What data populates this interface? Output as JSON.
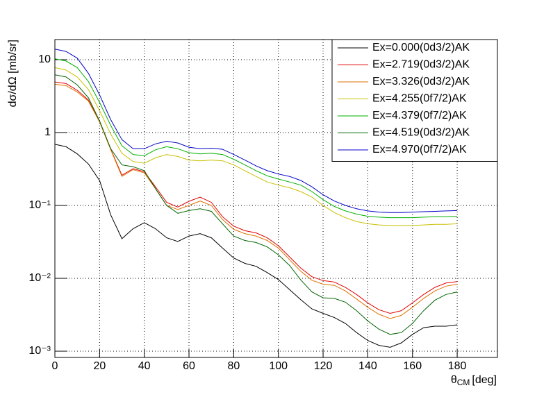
{
  "chart_data": {
    "type": "line",
    "x_label": {
      "symbol": "θ",
      "subscript": "CM",
      "unit": "[deg]"
    },
    "y_label": "dσ/dΩ [mb/sr]",
    "log_y": true,
    "grid": true,
    "legend": "top-right",
    "xlim": [
      0,
      198
    ],
    "xticks": [
      0,
      20,
      40,
      60,
      80,
      100,
      120,
      140,
      160,
      180
    ],
    "ylim": [
      0.00082,
      18.9
    ],
    "yticks": [
      {
        "value": 0.001,
        "label": "10⁻³"
      },
      {
        "value": 0.01,
        "label": "10⁻²"
      },
      {
        "value": 0.1,
        "label": "10⁻¹"
      },
      1,
      10
    ],
    "x": [
      0,
      5,
      10,
      15,
      20,
      25,
      30,
      35,
      40,
      45,
      50,
      55,
      60,
      65,
      70,
      75,
      80,
      85,
      90,
      95,
      100,
      105,
      110,
      115,
      120,
      125,
      130,
      135,
      140,
      145,
      150,
      155,
      160,
      165,
      170,
      175,
      180
    ],
    "series": [
      {
        "name": "Ex=0.000(0d3/2)AK",
        "color": "#000000",
        "values": [
          0.69,
          0.64,
          0.51,
          0.37,
          0.22,
          0.074,
          0.035,
          0.048,
          0.058,
          0.048,
          0.036,
          0.032,
          0.038,
          0.041,
          0.036,
          0.026,
          0.019,
          0.016,
          0.0146,
          0.012,
          0.0096,
          0.007,
          0.0051,
          0.0038,
          0.0033,
          0.0029,
          0.0024,
          0.0018,
          0.0014,
          0.0012,
          0.00113,
          0.0013,
          0.0017,
          0.0021,
          0.0022,
          0.0022,
          0.0023
        ]
      },
      {
        "name": "Ex=2.719(0d3/2)AK",
        "color": "#e00000",
        "values": [
          4.95,
          4.7,
          3.8,
          2.8,
          1.42,
          0.59,
          0.26,
          0.32,
          0.29,
          0.18,
          0.11,
          0.095,
          0.114,
          0.13,
          0.11,
          0.07,
          0.052,
          0.045,
          0.042,
          0.036,
          0.028,
          0.0197,
          0.0138,
          0.0105,
          0.0093,
          0.0089,
          0.0075,
          0.006,
          0.0046,
          0.0037,
          0.0033,
          0.0036,
          0.0046,
          0.006,
          0.0075,
          0.0086,
          0.009
        ]
      },
      {
        "name": "Ex=3.326(0d3/2)AK",
        "color": "#e07000",
        "values": [
          4.6,
          4.4,
          3.6,
          2.7,
          1.4,
          0.58,
          0.25,
          0.31,
          0.28,
          0.17,
          0.1,
          0.088,
          0.1,
          0.115,
          0.1,
          0.064,
          0.047,
          0.041,
          0.038,
          0.033,
          0.026,
          0.018,
          0.0125,
          0.0094,
          0.0083,
          0.008,
          0.0067,
          0.0052,
          0.004,
          0.0032,
          0.0028,
          0.0031,
          0.004,
          0.0053,
          0.0067,
          0.0078,
          0.0083
        ]
      },
      {
        "name": "Ex=4.255(0f7/2)AK",
        "color": "#c8c000",
        "values": [
          7.8,
          7.2,
          5.8,
          3.9,
          2.0,
          0.95,
          0.52,
          0.4,
          0.38,
          0.45,
          0.5,
          0.47,
          0.42,
          0.41,
          0.42,
          0.41,
          0.36,
          0.3,
          0.25,
          0.21,
          0.19,
          0.175,
          0.155,
          0.13,
          0.1,
          0.08,
          0.068,
          0.06,
          0.056,
          0.054,
          0.053,
          0.053,
          0.053,
          0.054,
          0.055,
          0.055,
          0.056
        ]
      },
      {
        "name": "Ex=4.379(0f7/2)AK",
        "color": "#00b000",
        "values": [
          10.3,
          9.6,
          7.8,
          5.0,
          2.6,
          1.25,
          0.66,
          0.5,
          0.48,
          0.58,
          0.64,
          0.6,
          0.53,
          0.51,
          0.52,
          0.5,
          0.43,
          0.36,
          0.3,
          0.255,
          0.23,
          0.21,
          0.19,
          0.155,
          0.12,
          0.097,
          0.084,
          0.076,
          0.071,
          0.069,
          0.068,
          0.068,
          0.068,
          0.069,
          0.07,
          0.07,
          0.071
        ]
      },
      {
        "name": "Ex=4.519(0d3/2)AK",
        "color": "#006400",
        "values": [
          6.2,
          5.8,
          4.5,
          3.0,
          1.45,
          0.6,
          0.36,
          0.34,
          0.3,
          0.17,
          0.1,
          0.078,
          0.085,
          0.09,
          0.083,
          0.056,
          0.038,
          0.033,
          0.031,
          0.027,
          0.021,
          0.015,
          0.0095,
          0.0065,
          0.0054,
          0.0053,
          0.0047,
          0.0036,
          0.0026,
          0.002,
          0.0017,
          0.0018,
          0.0024,
          0.0036,
          0.005,
          0.006,
          0.0065
        ]
      },
      {
        "name": "Ex=4.970(0f7/2)AK",
        "color": "#0000c8",
        "values": [
          14,
          13,
          10.5,
          6.5,
          3.3,
          1.5,
          0.8,
          0.6,
          0.6,
          0.7,
          0.76,
          0.72,
          0.63,
          0.6,
          0.61,
          0.59,
          0.5,
          0.42,
          0.35,
          0.3,
          0.27,
          0.25,
          0.22,
          0.18,
          0.14,
          0.115,
          0.1,
          0.09,
          0.084,
          0.081,
          0.08,
          0.08,
          0.081,
          0.082,
          0.083,
          0.084,
          0.085
        ]
      }
    ]
  }
}
